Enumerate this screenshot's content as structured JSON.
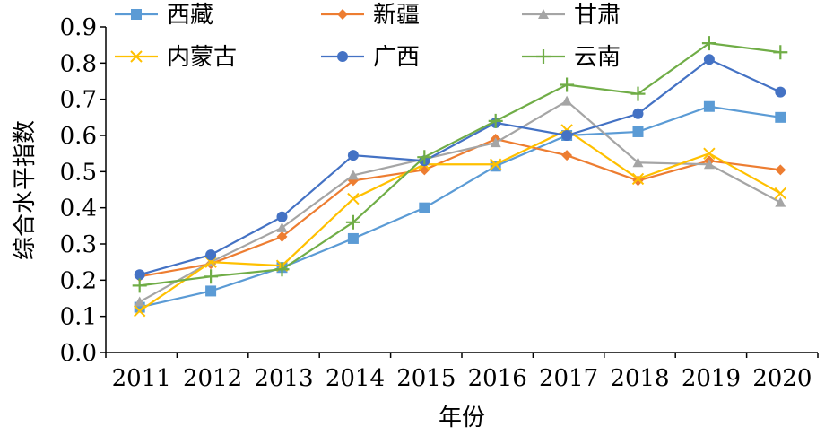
{
  "chart_data": {
    "type": "line",
    "title": "",
    "xlabel": "年份",
    "ylabel": "综合水平指数",
    "ylim": [
      0,
      0.9
    ],
    "yticks": [
      "0.0",
      "0.1",
      "0.2",
      "0.3",
      "0.4",
      "0.5",
      "0.6",
      "0.7",
      "0.8",
      "0.9"
    ],
    "categories": [
      "2011",
      "2012",
      "2013",
      "2014",
      "2015",
      "2016",
      "2017",
      "2018",
      "2019",
      "2020"
    ],
    "grid": false,
    "legend_position": "top",
    "series": [
      {
        "name": "西藏",
        "marker": "square",
        "color": "#5b9bd5",
        "values": [
          0.125,
          0.17,
          0.235,
          0.315,
          0.4,
          0.515,
          0.6,
          0.61,
          0.68,
          0.65
        ]
      },
      {
        "name": "新疆",
        "marker": "diamond",
        "color": "#ed7d31",
        "values": [
          0.21,
          0.245,
          0.32,
          0.475,
          0.505,
          0.59,
          0.545,
          0.475,
          0.53,
          0.505
        ]
      },
      {
        "name": "甘肃",
        "marker": "triangle",
        "color": "#a5a5a5",
        "values": [
          0.14,
          0.25,
          0.345,
          0.49,
          0.535,
          0.58,
          0.695,
          0.525,
          0.52,
          0.415
        ]
      },
      {
        "name": "内蒙古",
        "marker": "x",
        "color": "#ffc000",
        "values": [
          0.115,
          0.25,
          0.24,
          0.425,
          0.52,
          0.52,
          0.615,
          0.48,
          0.55,
          0.44
        ]
      },
      {
        "name": "广西",
        "marker": "circle",
        "color": "#4472c4",
        "values": [
          0.215,
          0.27,
          0.375,
          0.545,
          0.53,
          0.635,
          0.6,
          0.66,
          0.81,
          0.72
        ]
      },
      {
        "name": "云南",
        "marker": "plus",
        "color": "#70ad47",
        "values": [
          0.185,
          0.21,
          0.23,
          0.36,
          0.54,
          0.64,
          0.74,
          0.715,
          0.855,
          0.83
        ]
      }
    ]
  }
}
